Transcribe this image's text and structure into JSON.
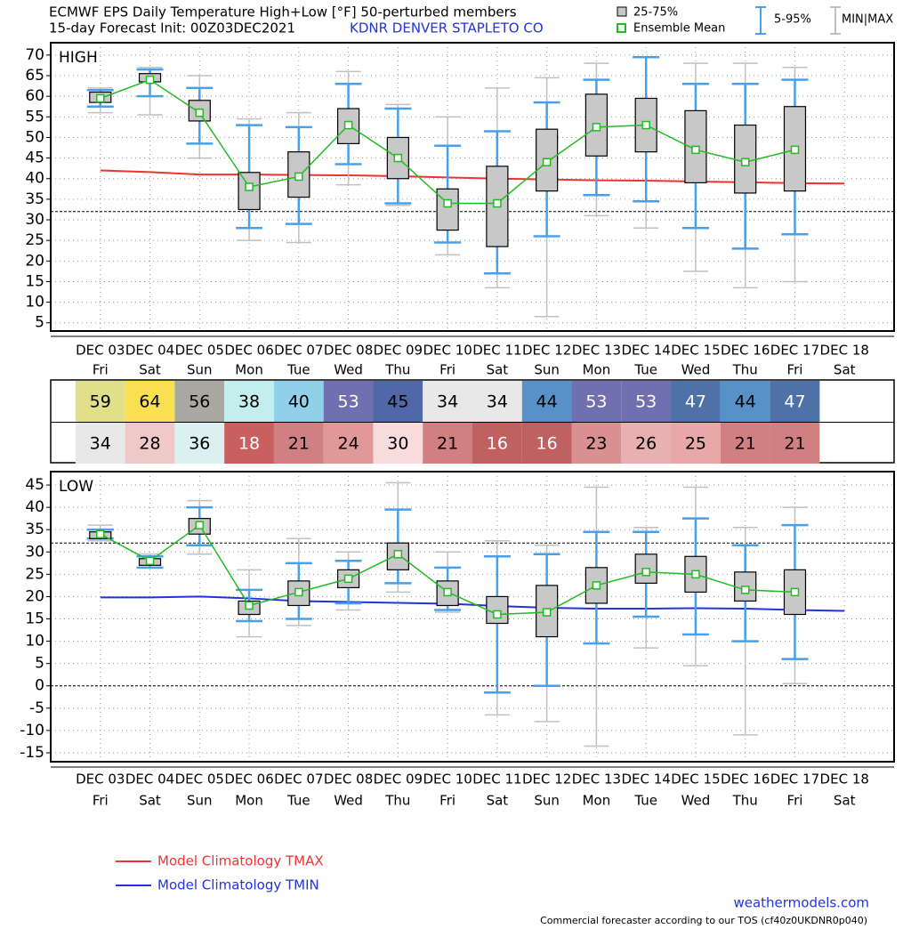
{
  "header": {
    "title": "ECMWF EPS Daily Temperature High+Low [°F]  50-perturbed members",
    "subtitle": "15-day Forecast Init: 00Z03DEC2021",
    "station": "KDNR  DENVER STAPLETO CO"
  },
  "legend": {
    "box": "25-75%",
    "mean": "Ensemble Mean",
    "whisker": "5-95%",
    "range": "MIN|MAX"
  },
  "chart_data": [
    {
      "type": "box",
      "label": "HIGH",
      "categories": [
        "DEC 03",
        "DEC 04",
        "DEC 05",
        "DEC 06",
        "DEC 07",
        "DEC 08",
        "DEC 09",
        "DEC 10",
        "DEC 11",
        "DEC 12",
        "DEC 13",
        "DEC 14",
        "DEC 15",
        "DEC 16",
        "DEC 17",
        "DEC 18"
      ],
      "weekdays": [
        "Fri",
        "Sat",
        "Sun",
        "Mon",
        "Tue",
        "Wed",
        "Thu",
        "Fri",
        "Sat",
        "Sun",
        "Mon",
        "Tue",
        "Wed",
        "Thu",
        "Fri",
        "Sat"
      ],
      "min": [
        56,
        55.5,
        45,
        25,
        24.5,
        38.5,
        33.5,
        21.5,
        13.5,
        6.5,
        31,
        28,
        17.5,
        13.5,
        15,
        null
      ],
      "p5": [
        57.5,
        60,
        48.5,
        28,
        29,
        43.5,
        34,
        24.5,
        17,
        26,
        36,
        34.5,
        28,
        23,
        26.5,
        null
      ],
      "p25": [
        58.5,
        63.5,
        54,
        32.5,
        35.5,
        48.5,
        40,
        27.5,
        23.5,
        37,
        45.5,
        46.5,
        39,
        36.5,
        37,
        null
      ],
      "mean": [
        59.5,
        64,
        56,
        38,
        40.5,
        53,
        45,
        34,
        34,
        44,
        52.5,
        53,
        47,
        44,
        47,
        null
      ],
      "p75": [
        61,
        65.5,
        59,
        41.5,
        46.5,
        57,
        50,
        37.5,
        43,
        52,
        60.5,
        59.5,
        56.5,
        53,
        57.5,
        null
      ],
      "p95": [
        61.5,
        66.5,
        62,
        53,
        52.5,
        63,
        57,
        48,
        51.5,
        58.5,
        64,
        69.5,
        63,
        63,
        64,
        null
      ],
      "max": [
        62,
        67,
        65,
        54.5,
        56,
        66,
        58,
        55,
        62,
        64.5,
        68,
        69.5,
        68,
        68,
        67,
        null
      ],
      "box_color": "#c8c8c8",
      "whisker_color": "#4aa0e8",
      "range_color": "#c0c0c0",
      "mean_color": "#22bb22",
      "climatology": {
        "name": "Model Climatology TMAX",
        "color": "#ee3333",
        "values": [
          42,
          41.6,
          41,
          41,
          40.9,
          40.8,
          40.6,
          40.3,
          40,
          39.8,
          39.6,
          39.5,
          39.3,
          39.1,
          38.9,
          38.8
        ]
      },
      "reference_lines": [
        32
      ],
      "ylim": [
        3,
        73
      ],
      "yticks": [
        5,
        10,
        15,
        20,
        25,
        30,
        35,
        40,
        45,
        50,
        55,
        60,
        65,
        70
      ],
      "grid": true
    },
    {
      "type": "box",
      "label": "LOW",
      "categories": [
        "DEC 03",
        "DEC 04",
        "DEC 05",
        "DEC 06",
        "DEC 07",
        "DEC 08",
        "DEC 09",
        "DEC 10",
        "DEC 11",
        "DEC 12",
        "DEC 13",
        "DEC 14",
        "DEC 15",
        "DEC 16",
        "DEC 17",
        "DEC 18"
      ],
      "weekdays": [
        "Fri",
        "Sat",
        "Sun",
        "Mon",
        "Tue",
        "Wed",
        "Thu",
        "Fri",
        "Sat",
        "Sun",
        "Mon",
        "Tue",
        "Wed",
        "Thu",
        "Fri",
        "Sat"
      ],
      "min": [
        32.5,
        26.5,
        29.5,
        11,
        13.5,
        17,
        21,
        16.5,
        -6.5,
        -8,
        -13.5,
        8.5,
        4.5,
        -11,
        0.5,
        null
      ],
      "p5": [
        33,
        26.5,
        31.5,
        14.5,
        15,
        18.5,
        23,
        17,
        -1.5,
        0,
        9.5,
        15.5,
        11.5,
        10,
        6,
        null
      ],
      "p25": [
        33,
        27,
        34,
        16,
        18,
        22,
        26,
        18,
        14,
        11,
        18.5,
        23,
        21,
        19,
        16,
        null
      ],
      "mean": [
        34,
        28,
        36,
        18,
        21,
        24,
        29.5,
        21,
        16,
        16.5,
        22.5,
        25.5,
        25,
        21.5,
        21,
        null
      ],
      "p75": [
        34.5,
        28.5,
        37.5,
        19,
        23.5,
        26,
        32,
        23.5,
        20,
        22.5,
        26.5,
        29.5,
        29,
        25.5,
        26,
        null
      ],
      "p95": [
        35,
        29,
        40,
        21.5,
        27.5,
        28,
        39.5,
        26.5,
        29,
        29.5,
        34.5,
        34.5,
        37.5,
        31.5,
        36,
        null
      ],
      "max": [
        36,
        29.5,
        41.5,
        26,
        33,
        30,
        45.5,
        30,
        32.5,
        31.5,
        44.5,
        35.5,
        44.5,
        35.5,
        40,
        null
      ],
      "box_color": "#c8c8c8",
      "whisker_color": "#4aa0e8",
      "range_color": "#c0c0c0",
      "mean_color": "#22bb22",
      "climatology": {
        "name": "Model Climatology TMIN",
        "color": "#2233dd",
        "values": [
          19.8,
          19.8,
          20,
          19.6,
          19,
          18.8,
          18.6,
          18.4,
          17.9,
          17.5,
          17.3,
          17.3,
          17.4,
          17.3,
          17,
          16.8
        ]
      },
      "reference_lines": [
        32,
        0
      ],
      "ylim": [
        -17,
        48
      ],
      "yticks": [
        -15,
        -10,
        -5,
        0,
        5,
        10,
        15,
        20,
        25,
        30,
        35,
        40,
        45
      ],
      "grid": true
    }
  ],
  "table": {
    "rows": [
      {
        "values": [
          59,
          64,
          56,
          38,
          40,
          53,
          45,
          34,
          34,
          44,
          53,
          53,
          47,
          44,
          47
        ],
        "colors": [
          "#e0e08a",
          "#f8e050",
          "#a8a8a0",
          "#c4eeee",
          "#90d0e8",
          "#7070b0",
          "#5068a8",
          "#e8e8e8",
          "#e8e8e8",
          "#5890c8",
          "#7070b0",
          "#7070b0",
          "#5070a8",
          "#5890c8",
          "#5070a8"
        ],
        "text_colors": [
          "#000",
          "#000",
          "#000",
          "#000",
          "#000",
          "#fff",
          "#000",
          "#000",
          "#000",
          "#000",
          "#fff",
          "#fff",
          "#fff",
          "#000",
          "#fff"
        ]
      },
      {
        "values": [
          34,
          28,
          36,
          18,
          21,
          24,
          30,
          21,
          16,
          16,
          23,
          26,
          25,
          21,
          21
        ],
        "colors": [
          "#e8e8e8",
          "#f0c8c8",
          "#dcf0f0",
          "#c86060",
          "#d08080",
          "#e09898",
          "#f8dcdc",
          "#d08080",
          "#c06060",
          "#c06060",
          "#d89090",
          "#e8b0b0",
          "#e8a8a8",
          "#d08080",
          "#d08080"
        ],
        "text_colors": [
          "#000",
          "#000",
          "#000",
          "#fff",
          "#000",
          "#000",
          "#000",
          "#000",
          "#fff",
          "#fff",
          "#000",
          "#000",
          "#000",
          "#000",
          "#000"
        ]
      }
    ]
  },
  "footer": {
    "site": "weathermodels.com",
    "note": "Commercial forecaster according to our TOS (cf40z0UKDNR0p040)"
  }
}
